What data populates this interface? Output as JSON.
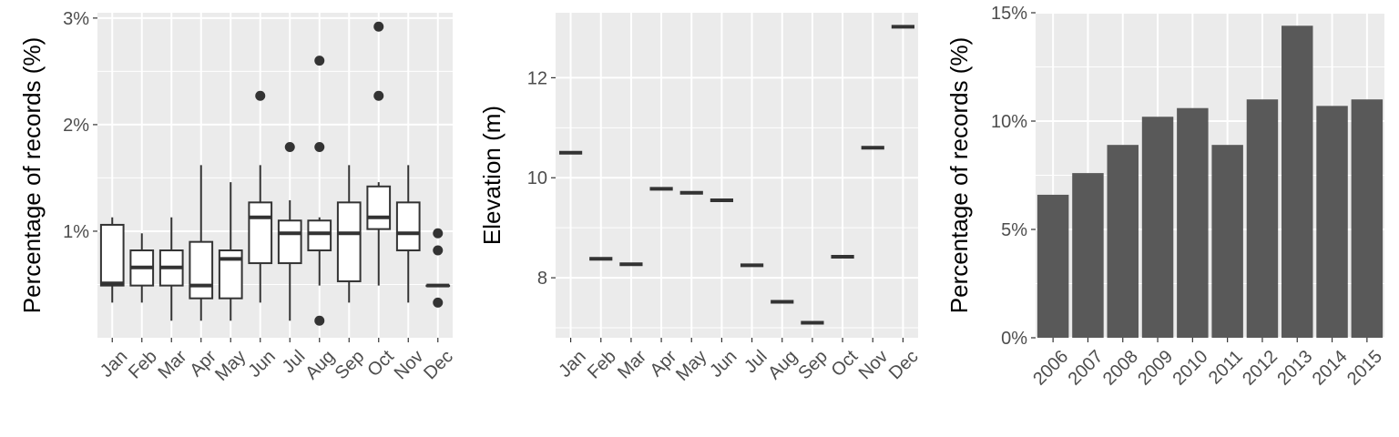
{
  "chart_data": [
    {
      "type": "box",
      "xlabel": "",
      "ylabel": "Percentage of records (%)",
      "ylim": [
        0.0,
        3.05
      ],
      "y_ticks": [
        1,
        2,
        3
      ],
      "y_tick_labels": [
        "1%",
        "2%",
        "3%"
      ],
      "categories": [
        "Jan",
        "Feb",
        "Mar",
        "Apr",
        "May",
        "Jun",
        "Jul",
        "Aug",
        "Sep",
        "Oct",
        "Nov",
        "Dec"
      ],
      "boxes": [
        {
          "whisker_low": 0.33,
          "q1": 0.49,
          "median": 0.51,
          "q3": 1.06,
          "whisker_high": 1.13,
          "outliers": []
        },
        {
          "whisker_low": 0.33,
          "q1": 0.49,
          "median": 0.66,
          "q3": 0.82,
          "whisker_high": 0.98,
          "outliers": []
        },
        {
          "whisker_low": 0.16,
          "q1": 0.49,
          "median": 0.66,
          "q3": 0.82,
          "whisker_high": 1.13,
          "outliers": []
        },
        {
          "whisker_low": 0.16,
          "q1": 0.37,
          "median": 0.49,
          "q3": 0.9,
          "whisker_high": 1.62,
          "outliers": []
        },
        {
          "whisker_low": 0.16,
          "q1": 0.37,
          "median": 0.74,
          "q3": 0.82,
          "whisker_high": 1.46,
          "outliers": []
        },
        {
          "whisker_low": 0.33,
          "q1": 0.7,
          "median": 1.13,
          "q3": 1.27,
          "whisker_high": 1.62,
          "outliers": [
            2.27
          ]
        },
        {
          "whisker_low": 0.16,
          "q1": 0.7,
          "median": 0.98,
          "q3": 1.1,
          "whisker_high": 1.29,
          "outliers": [
            1.79
          ]
        },
        {
          "whisker_low": 0.49,
          "q1": 0.82,
          "median": 0.98,
          "q3": 1.1,
          "whisker_high": 1.13,
          "outliers": [
            0.16,
            1.79,
            2.6
          ]
        },
        {
          "whisker_low": 0.33,
          "q1": 0.53,
          "median": 0.98,
          "q3": 1.27,
          "whisker_high": 1.62,
          "outliers": []
        },
        {
          "whisker_low": 0.49,
          "q1": 1.02,
          "median": 1.13,
          "q3": 1.42,
          "whisker_high": 1.46,
          "outliers": [
            2.27,
            2.92
          ]
        },
        {
          "whisker_low": 0.33,
          "q1": 0.82,
          "median": 0.98,
          "q3": 1.27,
          "whisker_high": 1.62,
          "outliers": []
        },
        {
          "whisker_low": 0.49,
          "q1": 0.49,
          "median": 0.49,
          "q3": 0.49,
          "whisker_high": 0.49,
          "outliers": [
            0.33,
            0.82,
            0.98
          ]
        }
      ],
      "grid": true
    },
    {
      "type": "scatter",
      "xlabel": "",
      "ylabel": "Elevation (m)",
      "ylim": [
        6.8,
        13.3
      ],
      "y_ticks": [
        8,
        10,
        12
      ],
      "y_tick_labels": [
        "8",
        "10",
        "12"
      ],
      "categories": [
        "Jan",
        "Feb",
        "Mar",
        "Apr",
        "May",
        "Jun",
        "Jul",
        "Aug",
        "Sep",
        "Oct",
        "Nov",
        "Dec"
      ],
      "values": [
        10.5,
        8.38,
        8.27,
        9.78,
        9.7,
        9.55,
        8.25,
        7.52,
        7.1,
        8.42,
        10.6,
        13.02
      ],
      "grid": true
    },
    {
      "type": "bar",
      "xlabel": "",
      "ylabel": "Percentage of records (%)",
      "ylim": [
        0,
        15
      ],
      "y_ticks": [
        0,
        5,
        10,
        15
      ],
      "y_tick_labels": [
        "0%",
        "5%",
        "10%",
        "15%"
      ],
      "categories": [
        "2006",
        "2007",
        "2008",
        "2009",
        "2010",
        "2011",
        "2012",
        "2013",
        "2014",
        "2015"
      ],
      "values": [
        6.6,
        7.6,
        8.9,
        10.2,
        10.6,
        8.9,
        11.0,
        14.4,
        10.7,
        11.0
      ],
      "colors": {
        "bar": "#595959"
      },
      "grid": true
    }
  ]
}
